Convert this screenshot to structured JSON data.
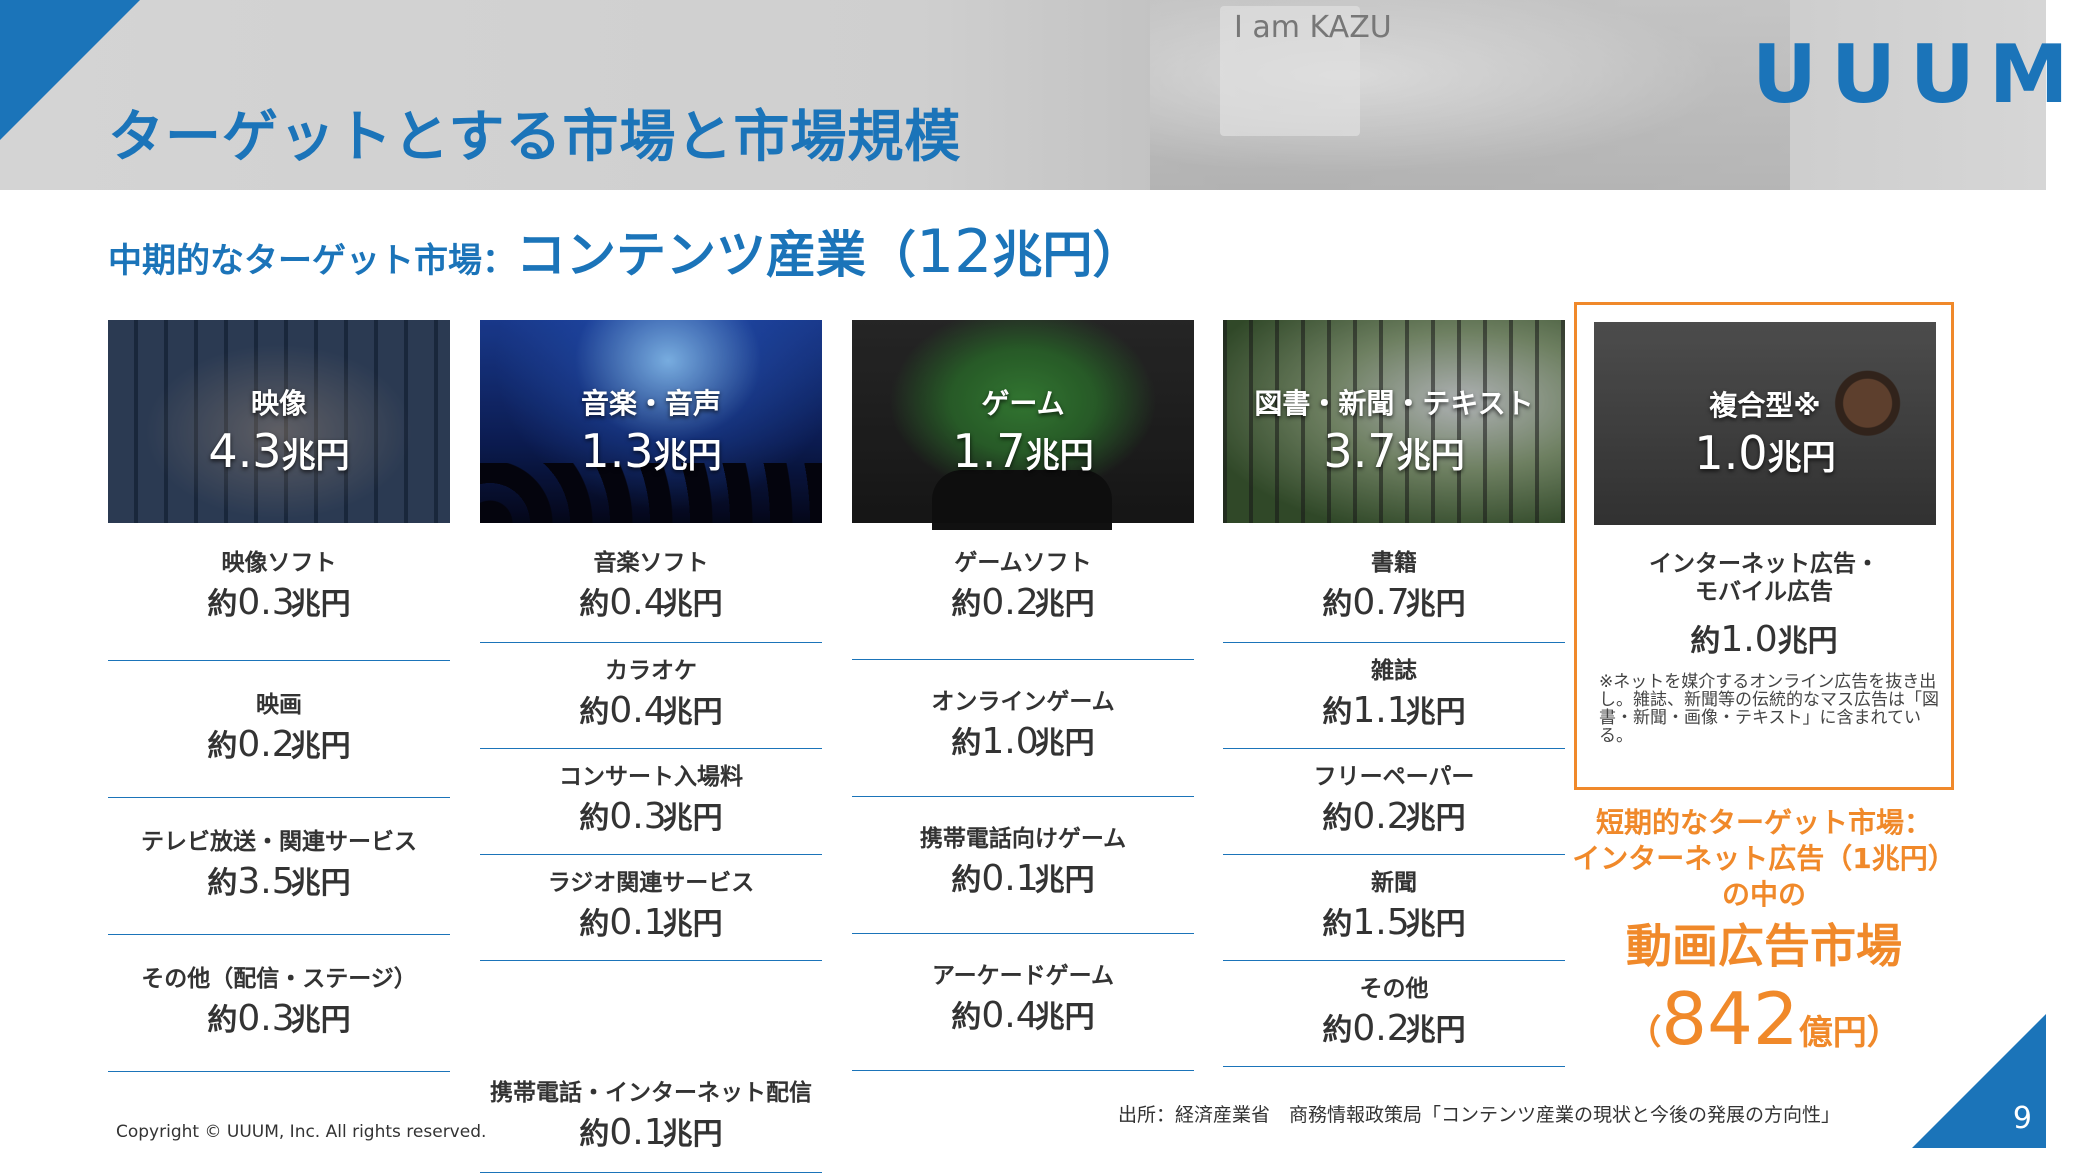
{
  "header": {
    "title": "ターゲットとする市場と市場規模",
    "logo": "UUUM",
    "photo_sign": "I am KAZU"
  },
  "subtitle": {
    "prefix": "中期的なターゲット市場：",
    "main": "コンテンツ産業（",
    "num": "12",
    "unit": "兆円",
    "close": "）"
  },
  "columns": [
    {
      "label": "映像",
      "value": "4.3",
      "unit": "兆円",
      "items": [
        {
          "name": "映像ソフト",
          "pre": "約",
          "value": "0.3",
          "unit": "兆円"
        },
        {
          "name": "映画",
          "pre": "約",
          "value": "0.2",
          "unit": "兆円"
        },
        {
          "name": "テレビ放送・関連サービス",
          "pre": "約",
          "value": "3.5",
          "unit": "兆円"
        },
        {
          "name": "その他（配信・ステージ）",
          "pre": "約",
          "value": "0.3",
          "unit": "兆円"
        }
      ]
    },
    {
      "label": "音楽・音声",
      "value": "1.3",
      "unit": "兆円",
      "items": [
        {
          "name": "音楽ソフト",
          "pre": "約",
          "value": "0.4",
          "unit": "兆円"
        },
        {
          "name": "カラオケ",
          "pre": "約",
          "value": "0.4",
          "unit": "兆円"
        },
        {
          "name": "コンサート入場料",
          "pre": "約",
          "value": "0.3",
          "unit": "兆円"
        },
        {
          "name": "ラジオ関連サービス",
          "pre": "約",
          "value": "0.1",
          "unit": "兆円"
        },
        {
          "name": "携帯電話・インターネット配信",
          "pre": "約",
          "value": "0.1",
          "unit": "兆円"
        }
      ]
    },
    {
      "label": "ゲーム",
      "value": "1.7",
      "unit": "兆円",
      "items": [
        {
          "name": "ゲームソフト",
          "pre": "約",
          "value": "0.2",
          "unit": "兆円"
        },
        {
          "name": "オンラインゲーム",
          "pre": "約",
          "value": "1.0",
          "unit": "兆円"
        },
        {
          "name": "携帯電話向けゲーム",
          "pre": "約",
          "value": "0.1",
          "unit": "兆円"
        },
        {
          "name": "アーケードゲーム",
          "pre": "約",
          "value": "0.4",
          "unit": "兆円"
        }
      ]
    },
    {
      "label": "図書・新聞・テキスト",
      "value": "3.7",
      "unit": "兆円",
      "items": [
        {
          "name": "書籍",
          "pre": "約",
          "value": "0.7",
          "unit": "兆円"
        },
        {
          "name": "雑誌",
          "pre": "約",
          "value": "1.1",
          "unit": "兆円"
        },
        {
          "name": "フリーペーパー",
          "pre": "約",
          "value": "0.2",
          "unit": "兆円"
        },
        {
          "name": "新聞",
          "pre": "約",
          "value": "1.5",
          "unit": "兆円"
        },
        {
          "name": "その他",
          "pre": "約",
          "value": "0.2",
          "unit": "兆円"
        }
      ]
    }
  ],
  "mixed": {
    "label": "複合型※",
    "value": "1.0",
    "unit": "兆円",
    "item_name_1": "インターネット広告・",
    "item_name_2": "モバイル広告",
    "item_pre": "約",
    "item_value": "1.0",
    "item_unit": "兆円",
    "note": "※ネットを媒介するオンライン広告を抜き出し。雑誌、新聞等の伝統的なマス広告は「図書・新聞・画像・テキスト」に含まれている。"
  },
  "short_term": {
    "line1": "短期的なターゲット市場：",
    "line2": "インターネット広告（1兆円）",
    "line3": "の中の",
    "line4": "動画広告市場",
    "open": "（",
    "num": "842",
    "unit": "億円）"
  },
  "footer": {
    "source": "出所：経済産業省　商務情報政策局「コンテンツ産業の現状と今後の発展の方向性」",
    "copyright": "Copyright © UUUM, Inc. All rights reserved.",
    "page": "9"
  },
  "colors": {
    "brand_blue": "#1b74b9",
    "accent_orange": "#f0892a"
  }
}
